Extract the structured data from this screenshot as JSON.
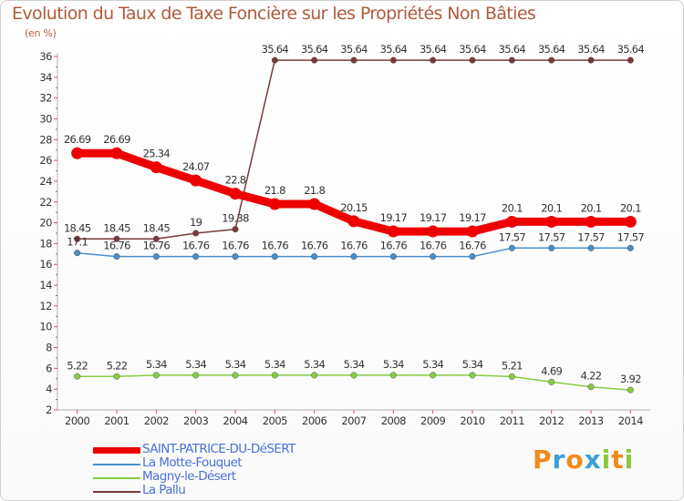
{
  "title": "Evolution du Taux de Taxe Foncière sur les Propriétés Non Bâties",
  "unit_label": "(en %)",
  "logo": {
    "text": "Proxiti",
    "letters": [
      {
        "ch": "P",
        "color": "#f08a1c"
      },
      {
        "ch": "r",
        "color": "#3aa0d8"
      },
      {
        "ch": "o",
        "color": "#f08a1c"
      },
      {
        "ch": "x",
        "color": "#3aa0d8"
      },
      {
        "ch": "i",
        "color": "#8cc63f"
      },
      {
        "ch": "t",
        "color": "#f08a1c"
      },
      {
        "ch": "i",
        "color": "#8cc63f"
      }
    ]
  },
  "chart_data": {
    "type": "line",
    "title": "Evolution du Taux de Taxe Foncière sur les Propriétés Non Bâties",
    "ylabel": "(en %)",
    "xlabel": "",
    "x": [
      "2000",
      "2001",
      "2002",
      "2003",
      "2004",
      "2005",
      "2006",
      "2007",
      "2008",
      "2009",
      "2010",
      "2011",
      "2012",
      "2013",
      "2014"
    ],
    "ylim": [
      2,
      36
    ],
    "yticks": [
      2,
      4,
      6,
      8,
      10,
      12,
      14,
      16,
      18,
      20,
      22,
      24,
      26,
      28,
      30,
      32,
      34,
      36
    ],
    "grid": false,
    "legend_position": "bottom-left",
    "series": [
      {
        "name": "SAINT-PATRICE-DU-DéSERT",
        "color": "#ee0000",
        "width": "thick",
        "values": [
          26.69,
          26.69,
          25.34,
          24.07,
          22.8,
          21.8,
          21.8,
          20.15,
          19.17,
          19.17,
          19.17,
          20.1,
          20.1,
          20.1,
          20.1
        ],
        "labels": [
          "26.69",
          "26.69",
          "25.34",
          "24.07",
          "22.8",
          "21.8",
          "21.8",
          "20.15",
          "19.17",
          "19.17",
          "19.17",
          "20.1",
          "20.1",
          "20.1",
          "20.1"
        ]
      },
      {
        "name": "La Motte-Fouquet",
        "color": "#4a8ec8",
        "width": "thin",
        "values": [
          17.1,
          16.76,
          16.76,
          16.76,
          16.76,
          16.76,
          16.76,
          16.76,
          16.76,
          16.76,
          16.76,
          17.57,
          17.57,
          17.57,
          17.57
        ],
        "labels": [
          "17.1",
          "16.76",
          "16.76",
          "16.76",
          "16.76",
          "16.76",
          "16.76",
          "16.76",
          "16.76",
          "16.76",
          "16.76",
          "17.57",
          "17.57",
          "17.57",
          "17.57"
        ]
      },
      {
        "name": "Magny-le-Désert",
        "color": "#88cc44",
        "width": "thin",
        "values": [
          5.22,
          5.22,
          5.34,
          5.34,
          5.34,
          5.34,
          5.34,
          5.34,
          5.34,
          5.34,
          5.34,
          5.21,
          4.69,
          4.22,
          3.92
        ],
        "labels": [
          "5.22",
          "5.22",
          "5.34",
          "5.34",
          "5.34",
          "5.34",
          "5.34",
          "5.34",
          "5.34",
          "5.34",
          "5.34",
          "5.21",
          "4.69",
          "4.22",
          "3.92"
        ]
      },
      {
        "name": "La Pallu",
        "color": "#7a3a3a",
        "width": "thin",
        "values": [
          18.45,
          18.45,
          18.45,
          19,
          19.38,
          35.64,
          35.64,
          35.64,
          35.64,
          35.64,
          35.64,
          35.64,
          35.64,
          35.64,
          35.64
        ],
        "labels": [
          "18.45",
          "18.45",
          "18.45",
          "19",
          "19.38",
          "35.64",
          "35.64",
          "35.64",
          "35.64",
          "35.64",
          "35.64",
          "35.64",
          "35.64",
          "35.64",
          "35.64"
        ]
      }
    ]
  }
}
